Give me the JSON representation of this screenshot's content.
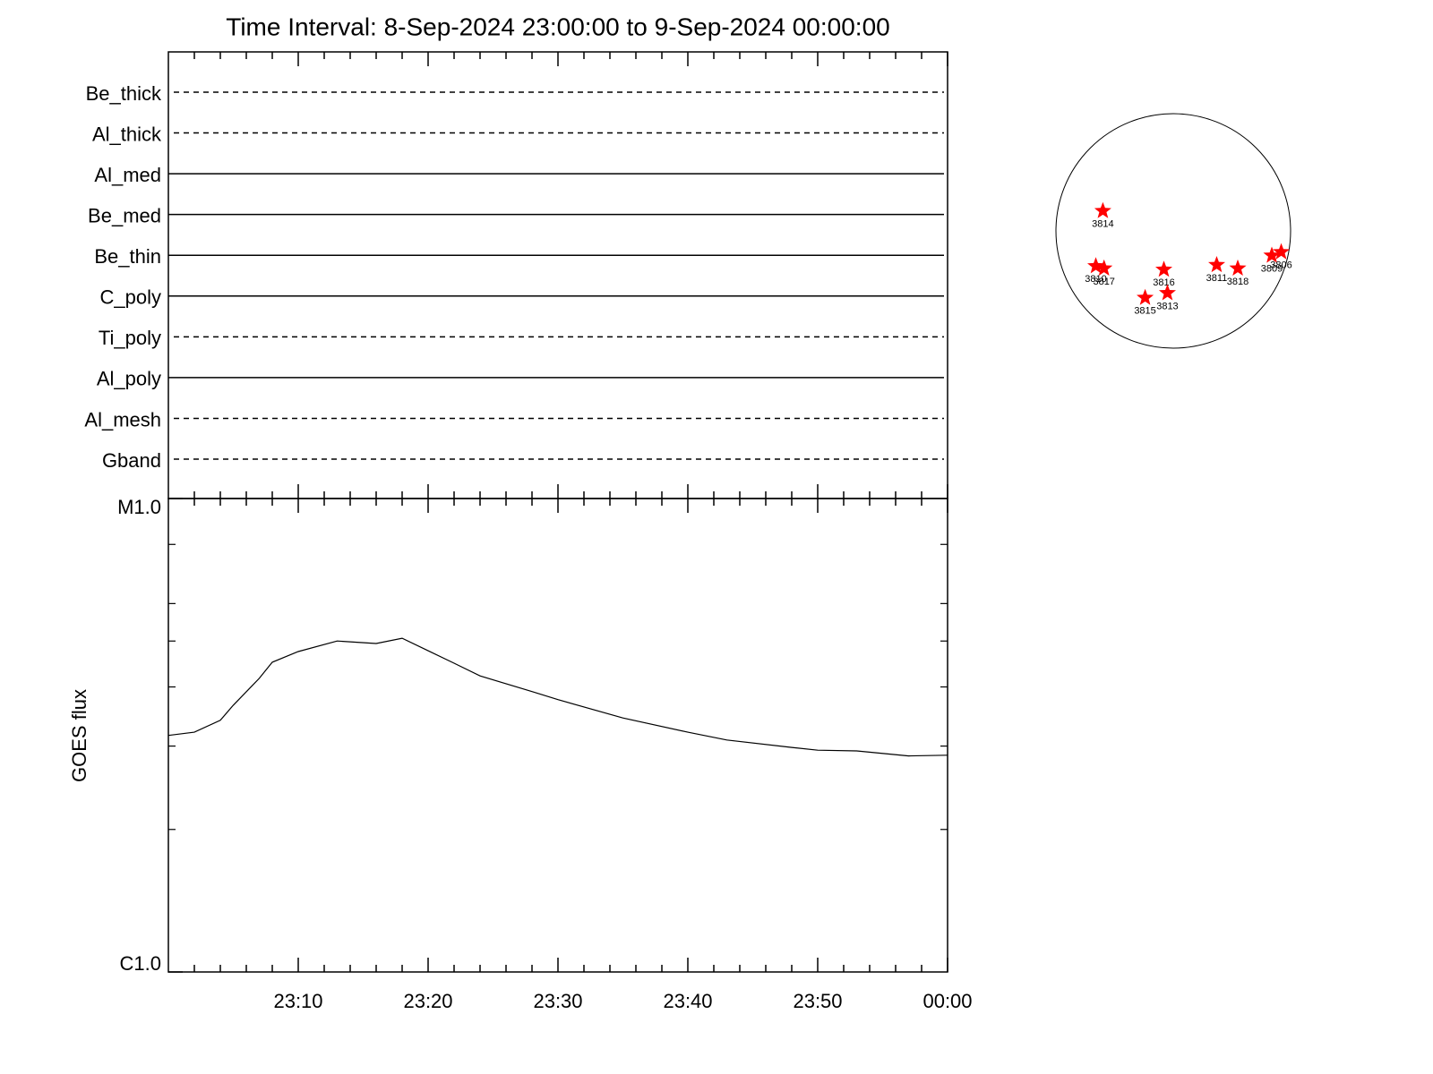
{
  "chart_data": [
    {
      "type": "status",
      "title": "Time Interval:  8-Sep-2024 23:00:00 to  9-Sep-2024 00:00:00",
      "categories": [
        "Be_thick",
        "Al_thick",
        "Al_med",
        "Be_med",
        "Be_thin",
        "C_poly",
        "Ti_poly",
        "Al_poly",
        "Al_mesh",
        "Gband"
      ],
      "styles": [
        "dashed",
        "dashed",
        "solid",
        "solid",
        "solid",
        "solid",
        "dashed",
        "solid",
        "dashed",
        "dashed"
      ]
    },
    {
      "type": "line",
      "ylabel": "GOES flux",
      "x": [
        "23:00",
        "23:02",
        "23:04",
        "23:05",
        "23:07",
        "23:08",
        "23:10",
        "23:13",
        "23:16",
        "23:18",
        "23:20",
        "23:22",
        "23:24",
        "23:28",
        "23:30",
        "23:35",
        "23:40",
        "23:43",
        "23:48",
        "23:50",
        "23:53",
        "23:57",
        "00:00"
      ],
      "values": [
        3.16e-06,
        3.21e-06,
        3.4e-06,
        3.66e-06,
        4.17e-06,
        4.51e-06,
        4.75e-06,
        5e-06,
        4.94e-06,
        5.07e-06,
        4.77e-06,
        4.49e-06,
        4.22e-06,
        3.91e-06,
        3.76e-06,
        3.44e-06,
        3.21e-06,
        3.09e-06,
        2.98e-06,
        2.94e-06,
        2.93e-06,
        2.86e-06,
        2.87e-06
      ],
      "color": "#000000",
      "log": true,
      "ylim": [
        1e-06,
        1e-05
      ],
      "yticks": [
        {
          "value": 1e-06,
          "label": "C1.0"
        },
        {
          "value": 1e-05,
          "label": "M1.0"
        }
      ],
      "yminorticks": [
        2e-06,
        3e-06,
        4e-06,
        5e-06,
        6e-06,
        8e-06
      ],
      "xlim": [
        "23:00",
        "00:00"
      ],
      "xticks": [
        "23:10",
        "23:20",
        "23:30",
        "23:40",
        "23:50",
        "00:00"
      ],
      "xminorticks": [
        "23:02",
        "23:04",
        "23:06",
        "23:08",
        "23:12",
        "23:14",
        "23:16",
        "23:18",
        "23:22",
        "23:24",
        "23:26",
        "23:28",
        "23:32",
        "23:34",
        "23:36",
        "23:38",
        "23:42",
        "23:44",
        "23:46",
        "23:48",
        "23:52",
        "23:54",
        "23:56",
        "23:58"
      ]
    },
    {
      "type": "scatter",
      "labels": [
        "3814",
        "3810",
        "3817",
        "3816",
        "3815",
        "3813",
        "3811",
        "3818",
        "3809",
        "3806"
      ],
      "x": [
        -0.6,
        -0.66,
        -0.59,
        -0.08,
        -0.24,
        -0.05,
        0.37,
        0.55,
        0.84,
        0.92
      ],
      "values": [
        0.17,
        -0.3,
        -0.32,
        -0.33,
        -0.57,
        -0.53,
        -0.29,
        -0.32,
        -0.21,
        -0.18
      ],
      "xlim": [
        -1,
        1
      ],
      "ylim": [
        -1,
        1
      ],
      "color": "#ff0000"
    }
  ]
}
